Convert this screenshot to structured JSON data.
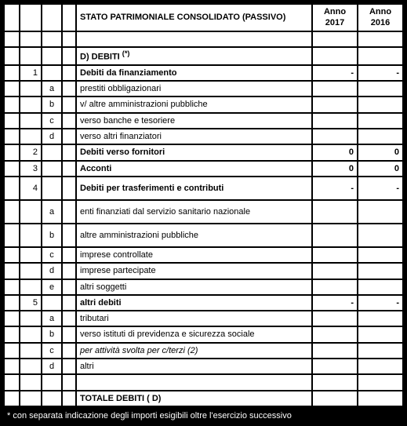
{
  "header": {
    "title": "STATO PATRIMONIALE CONSOLIDATO (PASSIVO)",
    "year1": "Anno 2017",
    "year2": "Anno 2016"
  },
  "section": {
    "code": "D) DEBITI",
    "note_mark": "(*)"
  },
  "rows": [
    {
      "n": "1",
      "s": "",
      "label": "Debiti da finanziamento",
      "v1": "-",
      "v2": "-",
      "bold": true
    },
    {
      "n": "",
      "s": "a",
      "label": "prestiti obbligazionari",
      "v1": "",
      "v2": ""
    },
    {
      "n": "",
      "s": "b",
      "label": "v/ altre amministrazioni pubbliche",
      "v1": "",
      "v2": ""
    },
    {
      "n": "",
      "s": "c",
      "label": "verso banche e tesoriere",
      "v1": "",
      "v2": ""
    },
    {
      "n": "",
      "s": "d",
      "label": "verso altri finanziatori",
      "v1": "",
      "v2": ""
    },
    {
      "n": "2",
      "s": "",
      "label": "Debiti verso fornitori",
      "v1": "0",
      "v2": "0",
      "bold": true
    },
    {
      "n": "3",
      "s": "",
      "label": "Acconti",
      "v1": "0",
      "v2": "0",
      "bold": true
    },
    {
      "n": "4",
      "s": "",
      "label": "Debiti per trasferimenti e contributi",
      "v1": "-",
      "v2": "-",
      "bold": true,
      "tall": true
    },
    {
      "n": "",
      "s": "a",
      "label": "enti finanziati dal servizio sanitario nazionale",
      "v1": "",
      "v2": "",
      "tall": true
    },
    {
      "n": "",
      "s": "b",
      "label": "altre amministrazioni pubbliche",
      "v1": "",
      "v2": "",
      "tall": true
    },
    {
      "n": "",
      "s": "c",
      "label": "imprese controllate",
      "v1": "",
      "v2": ""
    },
    {
      "n": "",
      "s": "d",
      "label": "imprese partecipate",
      "v1": "",
      "v2": ""
    },
    {
      "n": "",
      "s": "e",
      "label": "altri soggetti",
      "v1": "",
      "v2": ""
    },
    {
      "n": "5",
      "s": "",
      "label": "altri debiti",
      "v1": "-",
      "v2": "-",
      "bold": true
    },
    {
      "n": "",
      "s": "a",
      "label": "tributari",
      "v1": "",
      "v2": ""
    },
    {
      "n": "",
      "s": "b",
      "label": "verso istituti di previdenza e sicurezza sociale",
      "v1": "",
      "v2": ""
    },
    {
      "n": "",
      "s": "c",
      "label": "per attività svolta per c/terzi (2)",
      "v1": "",
      "v2": "",
      "italic": true
    },
    {
      "n": "",
      "s": "d",
      "label": "altri",
      "v1": "",
      "v2": ""
    }
  ],
  "total": {
    "label": "TOTALE DEBITI ( D)",
    "v1": "",
    "v2": ""
  },
  "footnote": "* con separata indicazione degli importi esigibili oltre l'esercizio successivo"
}
